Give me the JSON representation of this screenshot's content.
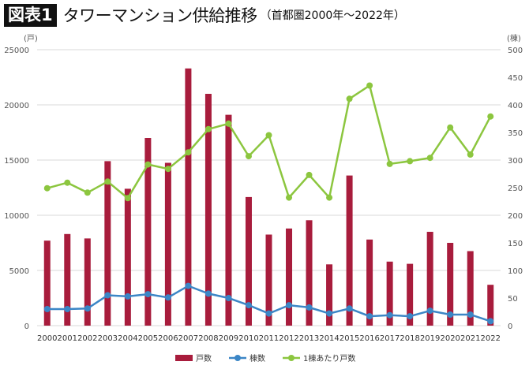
{
  "header": {
    "badge": "図表1",
    "title": "タワーマンション供給推移",
    "subtitle": "（首都圏2000年〜2022年）"
  },
  "chart_data": {
    "type": "bar+line",
    "categories": [
      "2000",
      "2001",
      "2002",
      "2003",
      "2004",
      "2005",
      "2006",
      "2007",
      "2008",
      "2009",
      "2010",
      "2011",
      "2012",
      "2013",
      "2014",
      "2015",
      "2016",
      "2017",
      "2018",
      "2019",
      "2020",
      "2021",
      "2022"
    ],
    "left_axis": {
      "unit": "(戸)",
      "ylim": [
        0,
        25000
      ],
      "ticks": [
        0,
        5000,
        10000,
        15000,
        20000,
        25000
      ]
    },
    "right_axis": {
      "unit": "(棟)",
      "ylim": [
        0,
        500
      ],
      "ticks": [
        0,
        50,
        100,
        150,
        200,
        250,
        300,
        350,
        400,
        450,
        500
      ]
    },
    "grid": true,
    "legend_position": "bottom",
    "series": [
      {
        "name": "戸数",
        "type": "bar",
        "axis": "left",
        "color": "#a81c3c",
        "values": [
          7700,
          8300,
          7900,
          14900,
          12400,
          17000,
          14750,
          23300,
          21000,
          19100,
          11650,
          8250,
          8800,
          9550,
          5550,
          13600,
          7800,
          5800,
          5600,
          8500,
          7500,
          6750,
          3700
        ]
      },
      {
        "name": "棟数",
        "type": "line",
        "axis": "right",
        "color": "#3b86c6",
        "values": [
          30,
          30,
          31,
          55,
          53,
          57,
          51,
          72,
          58,
          50,
          37,
          22,
          37,
          33,
          22,
          31,
          17,
          19,
          17,
          27,
          20,
          20,
          8
        ]
      },
      {
        "name": "1棟あたり戸数",
        "type": "line",
        "axis": "right",
        "color": "#8cc63f",
        "values": [
          249,
          259,
          241,
          261,
          231,
          292,
          284,
          314,
          356,
          366,
          307,
          345,
          232,
          273,
          232,
          411,
          435,
          293,
          298,
          304,
          359,
          310,
          379
        ]
      }
    ]
  }
}
